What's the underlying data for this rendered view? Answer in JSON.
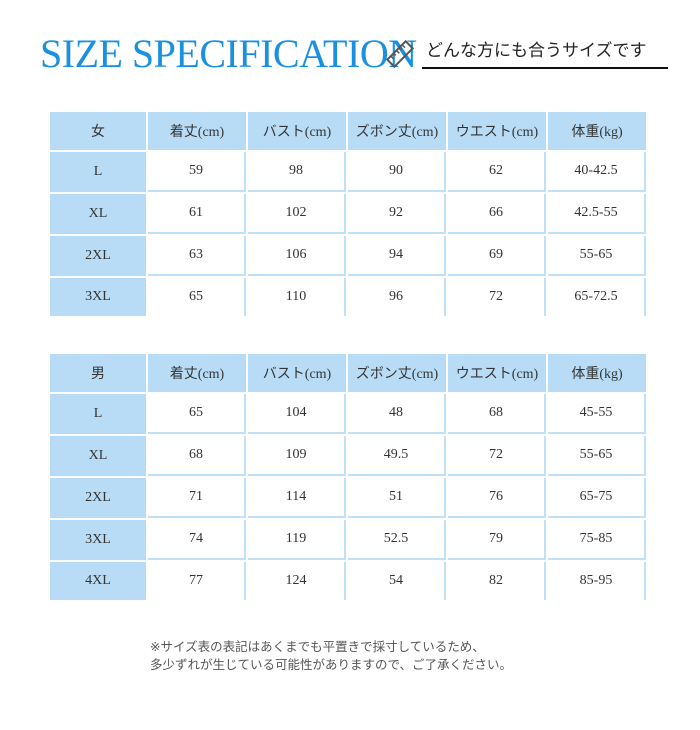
{
  "header": {
    "title": "SIZE SPECIFICATION",
    "subtitle": "どんな方にも合うサイズです",
    "icon": "ruler-icon"
  },
  "women": {
    "headers": [
      "女",
      "着丈(cm)",
      "バスト(cm)",
      "ズボン丈(cm)",
      "ウエスト(cm)",
      "体重(kg)"
    ],
    "rows": [
      [
        "L",
        "59",
        "98",
        "90",
        "62",
        "40-42.5"
      ],
      [
        "XL",
        "61",
        "102",
        "92",
        "66",
        "42.5-55"
      ],
      [
        "2XL",
        "63",
        "106",
        "94",
        "69",
        "55-65"
      ],
      [
        "3XL",
        "65",
        "110",
        "96",
        "72",
        "65-72.5"
      ]
    ]
  },
  "men": {
    "headers": [
      "男",
      "着丈(cm)",
      "バスト(cm)",
      "ズボン丈(cm)",
      "ウエスト(cm)",
      "体重(kg)"
    ],
    "rows": [
      [
        "L",
        "65",
        "104",
        "48",
        "68",
        "45-55"
      ],
      [
        "XL",
        "68",
        "109",
        "49.5",
        "72",
        "55-65"
      ],
      [
        "2XL",
        "71",
        "114",
        "51",
        "76",
        "65-75"
      ],
      [
        "3XL",
        "74",
        "119",
        "52.5",
        "79",
        "75-85"
      ],
      [
        "4XL",
        "77",
        "124",
        "54",
        "82",
        "85-95"
      ]
    ]
  },
  "note": {
    "line1": "※サイズ表の表記はあくまでも平置きで採寸しているため、",
    "line2": "多少ずれが生じている可能性がありますので、ご了承ください。"
  },
  "colors": {
    "accent": "#1a90e0",
    "cell_blue": "#b9dcf6"
  }
}
